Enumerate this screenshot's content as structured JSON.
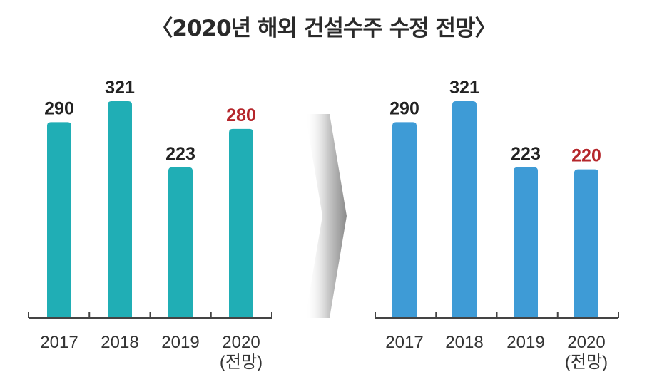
{
  "title": "〈2020년 해외 건설수주 수정 전망〉",
  "colors": {
    "left_bar": "#20AEB5",
    "right_bar": "#3E9BD6",
    "highlight": "#B5262B",
    "text": "#222222"
  },
  "chart_data": [
    {
      "type": "bar",
      "categories": [
        "2017",
        "2018",
        "2019",
        "2020"
      ],
      "category_sublabels": [
        "",
        "",
        "",
        "(전망)"
      ],
      "values": [
        290,
        321,
        223,
        280
      ],
      "value_labels": [
        "290",
        "321",
        "223",
        "280"
      ],
      "highlight_index": 3,
      "color": "#20AEB5",
      "ylim": [
        0,
        340
      ],
      "grid": false
    },
    {
      "type": "bar",
      "categories": [
        "2017",
        "2018",
        "2019",
        "2020"
      ],
      "category_sublabels": [
        "",
        "",
        "",
        "(전망)"
      ],
      "values": [
        290,
        321,
        223,
        220
      ],
      "value_labels": [
        "290",
        "321",
        "223",
        "220"
      ],
      "highlight_index": 3,
      "color": "#3E9BD6",
      "ylim": [
        0,
        340
      ],
      "grid": false
    }
  ]
}
